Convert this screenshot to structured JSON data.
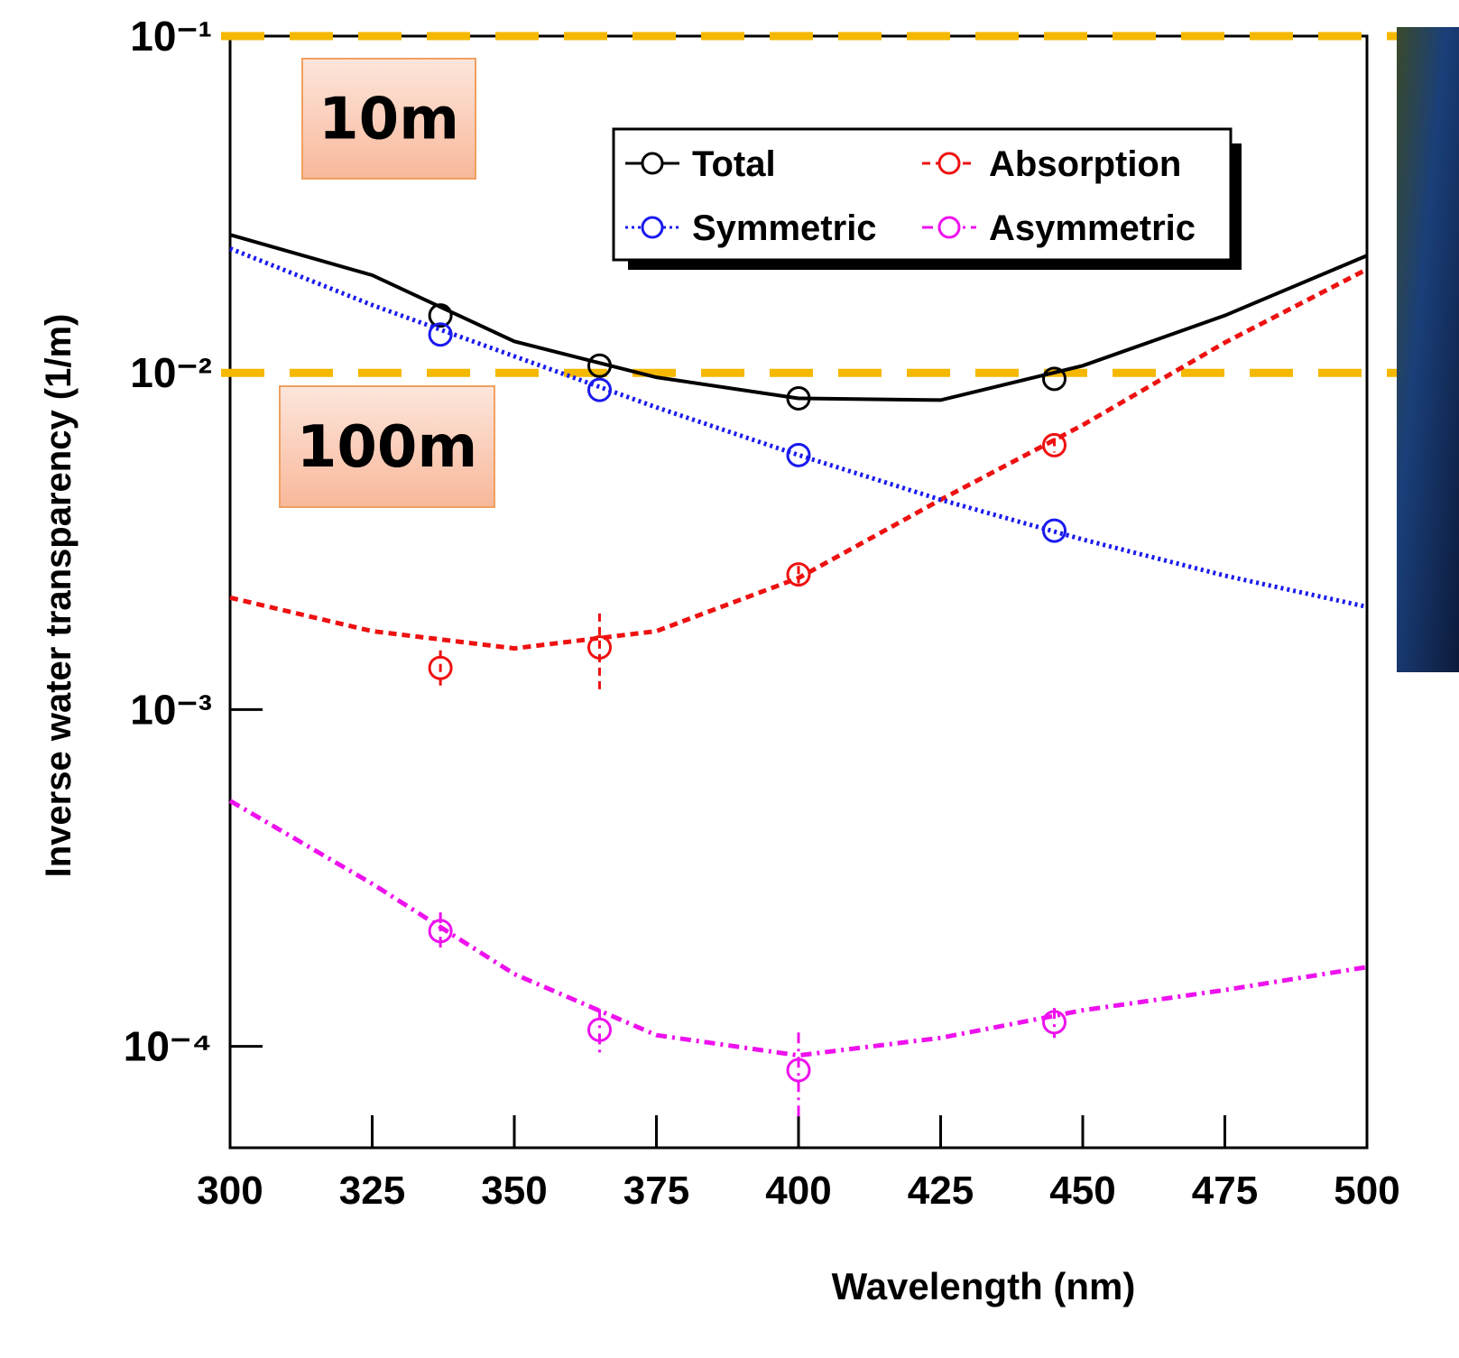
{
  "chart_data": {
    "type": "line",
    "log_y": true,
    "x_label": "Wavelength (nm)",
    "y_label": "Inverse water transparency (1/m)",
    "xlim": [
      300,
      500
    ],
    "ylim": [
      5e-05,
      0.1
    ],
    "xticks": [
      300,
      325,
      350,
      375,
      400,
      425,
      450,
      475,
      500
    ],
    "yticks": [
      {
        "value": 0.1,
        "label": "10⁻¹"
      },
      {
        "value": 0.01,
        "label": "10⁻²"
      },
      {
        "value": 0.001,
        "label": "10⁻³"
      },
      {
        "value": 0.0001,
        "label": "10⁻⁴"
      }
    ],
    "legend": "top",
    "x": [
      337,
      365,
      400,
      445
    ],
    "fit_x": [
      300,
      325,
      350,
      375,
      400,
      425,
      450,
      475,
      500
    ],
    "series": [
      {
        "name": "Total",
        "color": "#000000",
        "dash": "solid",
        "values": [
          0.0148,
          0.0105,
          0.0084,
          0.0096
        ],
        "fit": [
          0.0257,
          0.0195,
          0.0124,
          0.0097,
          0.0084,
          0.0083,
          0.0105,
          0.0148,
          0.0223
        ]
      },
      {
        "name": "Absorption",
        "color": "#ee1111",
        "dash": "dashed",
        "values": [
          0.00133,
          0.00153,
          0.00252,
          0.0061
        ],
        "errors": [
          0.00017,
          0.0004,
          0.00015,
          0.0003
        ],
        "fit": [
          0.00215,
          0.00171,
          0.00152,
          0.00171,
          0.00246,
          0.0042,
          0.007,
          0.0123,
          0.0203
        ]
      },
      {
        "name": "Symmetric",
        "color": "#1a1aee",
        "dash": "dotted",
        "values": [
          0.013,
          0.0089,
          0.0057,
          0.0034
        ],
        "fit": [
          0.0234,
          0.0159,
          0.0112,
          0.0079,
          0.0057,
          0.0042,
          0.0032,
          0.0025,
          0.00202
        ]
      },
      {
        "name": "Asymmetric",
        "color": "#ee11ee",
        "dash": "dashdot",
        "values": [
          0.00022,
          0.000112,
          8.5e-05,
          0.000118
        ],
        "errors": [
          3e-05,
          1.7e-05,
          2.5e-05,
          1.2e-05
        ],
        "fit": [
          0.000536,
          0.000304,
          0.000164,
          0.000108,
          9.4e-05,
          0.000106,
          0.000128,
          0.000147,
          0.000172
        ]
      }
    ],
    "reference_lines": [
      {
        "value": 0.1,
        "label": "10m",
        "color": "#f5b800"
      },
      {
        "value": 0.01,
        "label": "100m",
        "color": "#f5b800"
      }
    ]
  }
}
